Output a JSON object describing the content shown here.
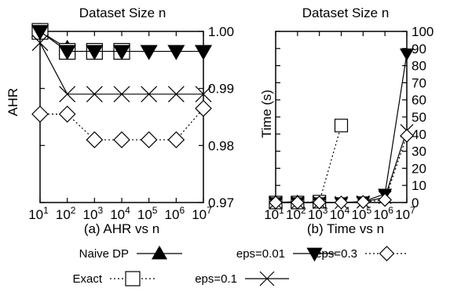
{
  "chart_data": [
    {
      "type": "line",
      "title": "Dataset Size n",
      "caption": "(a) AHR vs n",
      "xlabel": "",
      "ylabel": "AHR",
      "x_tick_labels": [
        "10^1",
        "10^2",
        "10^3",
        "10^4",
        "10^5",
        "10^6",
        "10^7"
      ],
      "y_tick_labels": [
        "0.97",
        "0.98",
        "0.99",
        "1.00"
      ],
      "xlim": [
        1,
        7
      ],
      "x_scale": "log10",
      "ylim": [
        0.97,
        1.0
      ],
      "grid": false,
      "series": [
        {
          "name": "Naive DP",
          "x": [
            1,
            2
          ],
          "y": [
            1.0,
            0.997
          ]
        },
        {
          "name": "Exact",
          "x": [
            1,
            2,
            3,
            4
          ],
          "y": [
            1.0,
            0.9965,
            0.9965,
            0.9965
          ]
        },
        {
          "name": "eps=0.01",
          "x": [
            1,
            2,
            3,
            4,
            5,
            6,
            7
          ],
          "y": [
            1.0,
            0.9965,
            0.9965,
            0.9965,
            0.9965,
            0.9965,
            0.9965
          ]
        },
        {
          "name": "eps=0.1",
          "x": [
            1,
            2,
            3,
            4,
            5,
            6,
            7
          ],
          "y": [
            0.998,
            0.989,
            0.989,
            0.989,
            0.989,
            0.989,
            0.989
          ]
        },
        {
          "name": "eps=0.3",
          "x": [
            1,
            2,
            3,
            4,
            5,
            6,
            7
          ],
          "y": [
            0.9855,
            0.9855,
            0.981,
            0.981,
            0.981,
            0.981,
            0.9865
          ]
        }
      ]
    },
    {
      "type": "line",
      "title": "Dataset Size n",
      "caption": "(b) Time vs n",
      "xlabel": "",
      "ylabel": "Time (s)",
      "x_tick_labels": [
        "10^1",
        "10^2",
        "10^3",
        "10^4",
        "10^5",
        "10^6",
        "10^7"
      ],
      "y_tick_labels": [
        "0",
        "10",
        "20",
        "30",
        "40",
        "50",
        "60",
        "70",
        "80",
        "90",
        "100"
      ],
      "xlim": [
        1,
        7
      ],
      "x_scale": "log10",
      "ylim": [
        0,
        100
      ],
      "grid": false,
      "series": [
        {
          "name": "Naive DP",
          "x": [
            1,
            2
          ],
          "y": [
            0,
            0.5
          ]
        },
        {
          "name": "Exact",
          "x": [
            1,
            2,
            3,
            4
          ],
          "y": [
            0,
            0,
            0.5,
            45
          ]
        },
        {
          "name": "eps=0.01",
          "x": [
            1,
            2,
            3,
            4,
            5,
            6,
            7
          ],
          "y": [
            0,
            0,
            0,
            0,
            0.5,
            5,
            87
          ]
        },
        {
          "name": "eps=0.1",
          "x": [
            1,
            2,
            3,
            4,
            5,
            6,
            7
          ],
          "y": [
            0,
            0,
            0,
            0,
            0.3,
            3,
            42
          ]
        },
        {
          "name": "eps=0.3",
          "x": [
            1,
            2,
            3,
            4,
            5,
            6,
            7
          ],
          "y": [
            0,
            0,
            0,
            0,
            0.3,
            1.5,
            39
          ]
        }
      ]
    }
  ],
  "legend": {
    "items": [
      {
        "name": "Naive DP",
        "marker": "triangle-up-filled",
        "line": "solid"
      },
      {
        "name": "eps=0.01",
        "marker": "triangle-down-filled",
        "line": "solid"
      },
      {
        "name": "eps=0.3",
        "marker": "diamond-open",
        "line": "dotted"
      },
      {
        "name": "Exact",
        "marker": "square-open",
        "line": "dotted"
      },
      {
        "name": "eps=0.1",
        "marker": "x",
        "line": "solid"
      }
    ]
  }
}
